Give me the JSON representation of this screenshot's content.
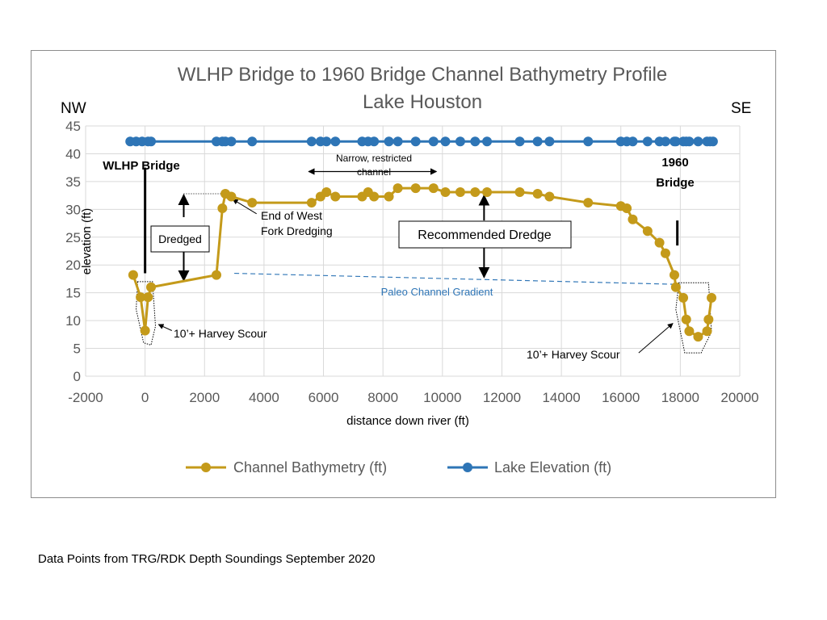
{
  "chart_data": {
    "type": "line",
    "title": "WLHP Bridge to 1960 Bridge Channel Bathymetry Profile",
    "subtitle": "Lake Houston",
    "direction_left": "NW",
    "direction_right": "SE",
    "xlabel": "distance down river (ft)",
    "ylabel": "elevation (ft)",
    "xlim": [
      -2000,
      20000
    ],
    "ylim": [
      0,
      45
    ],
    "xticks": [
      -2000,
      0,
      2000,
      4000,
      6000,
      8000,
      10000,
      12000,
      14000,
      16000,
      18000,
      20000
    ],
    "yticks": [
      0,
      5,
      10,
      15,
      20,
      25,
      30,
      35,
      40,
      45
    ],
    "grid": true,
    "legend_position": "bottom",
    "colors": {
      "bathymetry": "#c49a1a",
      "lake": "#2e75b6",
      "paleo": "#2e75b6",
      "grid": "#d9d9d9"
    },
    "series": [
      {
        "name": "Channel Bathymetry (ft)",
        "x": [
          -400,
          -150,
          0,
          100,
          200,
          2400,
          2600,
          2700,
          2900,
          3600,
          5600,
          5900,
          6100,
          6400,
          7300,
          7500,
          7700,
          8200,
          8500,
          9100,
          9700,
          10100,
          10600,
          11100,
          11500,
          12600,
          13200,
          13600,
          14900,
          16000,
          16200,
          16400,
          16900,
          17300,
          17500,
          17800,
          17850,
          18100,
          18200,
          18300,
          18600,
          18900,
          18950,
          19050
        ],
        "values": [
          18.2,
          14.2,
          8.2,
          14.2,
          16.0,
          18.2,
          30.2,
          32.8,
          32.3,
          31.2,
          31.2,
          32.3,
          33.1,
          32.3,
          32.3,
          33.1,
          32.3,
          32.3,
          33.8,
          33.8,
          33.8,
          33.1,
          33.1,
          33.1,
          33.1,
          33.1,
          32.8,
          32.3,
          31.2,
          30.6,
          30.2,
          28.2,
          26.1,
          24.0,
          22.1,
          18.2,
          16.0,
          14.1,
          10.2,
          8.1,
          7.1,
          8.1,
          10.2,
          14.1
        ]
      },
      {
        "name": "Lake Elevation (ft)",
        "x": [
          -500,
          -300,
          -100,
          100,
          200,
          2400,
          2600,
          2700,
          2900,
          3600,
          5600,
          5900,
          6100,
          6400,
          7300,
          7500,
          7700,
          8200,
          8500,
          9100,
          9700,
          10100,
          10600,
          11100,
          11500,
          12600,
          13200,
          13600,
          14900,
          16000,
          16200,
          16400,
          16900,
          17300,
          17500,
          17800,
          17850,
          18100,
          18200,
          18300,
          18600,
          18900,
          19000,
          19100
        ],
        "values": [
          42.2,
          42.2,
          42.2,
          42.2,
          42.2,
          42.2,
          42.2,
          42.2,
          42.2,
          42.2,
          42.2,
          42.2,
          42.2,
          42.2,
          42.2,
          42.2,
          42.2,
          42.2,
          42.2,
          42.2,
          42.2,
          42.2,
          42.2,
          42.2,
          42.2,
          42.2,
          42.2,
          42.2,
          42.2,
          42.2,
          42.2,
          42.2,
          42.2,
          42.2,
          42.2,
          42.2,
          42.2,
          42.2,
          42.2,
          42.2,
          42.2,
          42.2,
          42.2,
          42.2
        ]
      }
    ],
    "paleo_gradient": {
      "label": "Paleo Channel Gradient",
      "from": [
        3000,
        18.5
      ],
      "to": [
        18000,
        16.5
      ]
    },
    "annotations": {
      "wlhp_bridge": "WLHP Bridge",
      "bridge_1960_line1": "1960",
      "bridge_1960_line2": "Bridge",
      "narrow_line1": "Narrow, restricted",
      "narrow_line2": "channel",
      "dredged": "Dredged",
      "end_fork_line1": "End of West",
      "end_fork_line2": "Fork Dredging",
      "recommended_dredge": "Recommended Dredge",
      "scour_left": "10’+ Harvey Scour",
      "scour_right": "10’+ Harvey Scour"
    }
  },
  "footnote": "Data Points from TRG/RDK Depth Soundings September 2020"
}
